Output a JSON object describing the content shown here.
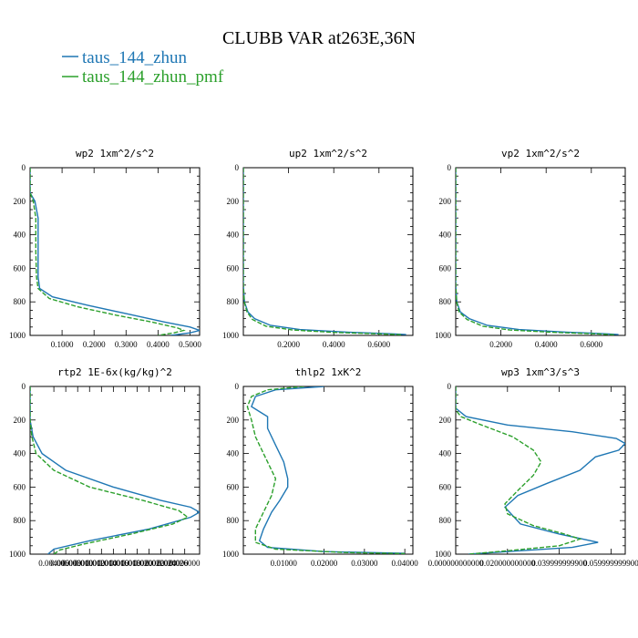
{
  "figure_title": "CLUBB VAR at263E,36N",
  "colors": {
    "zhun": "#1f77b4",
    "pmf": "#2ca02c"
  },
  "chart_data": [
    {
      "type": "line",
      "title": "wp2   1xm^2/s^2",
      "xlim": [
        0,
        0.53
      ],
      "ylim": [
        1000,
        0
      ],
      "x_tick_labels": [
        "0.1000",
        "0.2000",
        "0.3000",
        "0.4000",
        "0.5000"
      ],
      "x_tick_values": [
        0.1,
        0.2,
        0.3,
        0.4,
        0.5
      ],
      "y_tick_values": [
        0,
        200,
        400,
        600,
        800,
        1000
      ],
      "series": [
        {
          "name": "taus_144_zhun",
          "points": [
            [
              0,
              0
            ],
            [
              0,
              150
            ],
            [
              0.015,
              200
            ],
            [
              0.025,
              300
            ],
            [
              0.025,
              500
            ],
            [
              0.025,
              650
            ],
            [
              0.03,
              720
            ],
            [
              0.07,
              770
            ],
            [
              0.18,
              820
            ],
            [
              0.3,
              870
            ],
            [
              0.42,
              920
            ],
            [
              0.5,
              950
            ],
            [
              0.53,
              970
            ],
            [
              0.5,
              985
            ],
            [
              0.44,
              1000
            ]
          ]
        },
        {
          "name": "taus_144_zhun_pmf",
          "points": [
            [
              0,
              0
            ],
            [
              0,
              150
            ],
            [
              0.01,
              200
            ],
            [
              0.018,
              300
            ],
            [
              0.018,
              500
            ],
            [
              0.02,
              650
            ],
            [
              0.025,
              720
            ],
            [
              0.06,
              780
            ],
            [
              0.15,
              830
            ],
            [
              0.27,
              880
            ],
            [
              0.38,
              920
            ],
            [
              0.46,
              955
            ],
            [
              0.48,
              970
            ],
            [
              0.45,
              985
            ],
            [
              0.4,
              1000
            ]
          ]
        }
      ]
    },
    {
      "type": "line",
      "title": "up2   1xm^2/s^2",
      "xlim": [
        0,
        0.75
      ],
      "ylim": [
        1000,
        0
      ],
      "x_tick_labels": [
        "0.2000",
        "0.4000",
        "0.6000"
      ],
      "x_tick_values": [
        0.2,
        0.4,
        0.6
      ],
      "y_tick_values": [
        0,
        200,
        400,
        600,
        800,
        1000
      ],
      "series": [
        {
          "name": "taus_144_zhun",
          "points": [
            [
              0,
              0
            ],
            [
              0,
              700
            ],
            [
              0.005,
              800
            ],
            [
              0.02,
              860
            ],
            [
              0.05,
              900
            ],
            [
              0.12,
              940
            ],
            [
              0.25,
              965
            ],
            [
              0.45,
              980
            ],
            [
              0.65,
              990
            ],
            [
              0.72,
              995
            ]
          ]
        },
        {
          "name": "taus_144_zhun_pmf",
          "points": [
            [
              0,
              0
            ],
            [
              0,
              700
            ],
            [
              0.004,
              800
            ],
            [
              0.016,
              860
            ],
            [
              0.04,
              905
            ],
            [
              0.1,
              945
            ],
            [
              0.22,
              968
            ],
            [
              0.4,
              982
            ],
            [
              0.6,
              991
            ],
            [
              0.7,
              996
            ]
          ]
        }
      ]
    },
    {
      "type": "line",
      "title": "vp2   1xm^2/s^2",
      "xlim": [
        0,
        0.75
      ],
      "ylim": [
        1000,
        0
      ],
      "x_tick_labels": [
        "0.2000",
        "0.4000",
        "0.6000"
      ],
      "x_tick_values": [
        0.2,
        0.4,
        0.6
      ],
      "y_tick_values": [
        0,
        200,
        400,
        600,
        800,
        1000
      ],
      "series": [
        {
          "name": "taus_144_zhun",
          "points": [
            [
              0,
              0
            ],
            [
              0,
              700
            ],
            [
              0.005,
              800
            ],
            [
              0.02,
              860
            ],
            [
              0.06,
              900
            ],
            [
              0.14,
              940
            ],
            [
              0.28,
              965
            ],
            [
              0.48,
              980
            ],
            [
              0.66,
              990
            ],
            [
              0.72,
              995
            ]
          ]
        },
        {
          "name": "taus_144_zhun_pmf",
          "points": [
            [
              0,
              0
            ],
            [
              0,
              700
            ],
            [
              0.004,
              800
            ],
            [
              0.015,
              860
            ],
            [
              0.05,
              905
            ],
            [
              0.12,
              945
            ],
            [
              0.24,
              968
            ],
            [
              0.44,
              982
            ],
            [
              0.62,
              991
            ],
            [
              0.7,
              996
            ]
          ]
        }
      ]
    },
    {
      "type": "line",
      "title": "rtp2   1E-6x(kg/kg)^2",
      "xlim": [
        0,
        0.0285
      ],
      "ylim": [
        1000,
        0
      ],
      "x_tick_labels": [
        "0.004000",
        "0.006000",
        "0.008000",
        "0.010000",
        "0.012000",
        "0.014000",
        "0.016000",
        "0.018000",
        "0.020000",
        "0.022000",
        "0.024000",
        "0.026000"
      ],
      "x_tick_values": [
        0.004,
        0.006,
        0.008,
        0.01,
        0.012,
        0.014,
        0.016,
        0.018,
        0.02,
        0.022,
        0.024,
        0.026
      ],
      "y_tick_values": [
        0,
        200,
        400,
        600,
        800,
        1000
      ],
      "series": [
        {
          "name": "taus_144_zhun",
          "points": [
            [
              0,
              0
            ],
            [
              0,
              200
            ],
            [
              0.0005,
              300
            ],
            [
              0.002,
              400
            ],
            [
              0.006,
              500
            ],
            [
              0.014,
              600
            ],
            [
              0.022,
              680
            ],
            [
              0.027,
              720
            ],
            [
              0.0285,
              750
            ],
            [
              0.027,
              780
            ],
            [
              0.02,
              850
            ],
            [
              0.01,
              920
            ],
            [
              0.004,
              970
            ],
            [
              0.003,
              1000
            ]
          ]
        },
        {
          "name": "taus_144_zhun_pmf",
          "points": [
            [
              0,
              0
            ],
            [
              0,
              200
            ],
            [
              0.0003,
              300
            ],
            [
              0.001,
              400
            ],
            [
              0.004,
              500
            ],
            [
              0.01,
              600
            ],
            [
              0.019,
              680
            ],
            [
              0.025,
              740
            ],
            [
              0.0265,
              780
            ],
            [
              0.024,
              820
            ],
            [
              0.017,
              880
            ],
            [
              0.009,
              940
            ],
            [
              0.005,
              975
            ],
            [
              0.004,
              1000
            ]
          ]
        }
      ]
    },
    {
      "type": "line",
      "title": "thlp2   1xK^2",
      "xlim": [
        0,
        0.042
      ],
      "ylim": [
        1000,
        0
      ],
      "x_tick_labels": [
        "0.01000",
        "0.02000",
        "0.03000",
        "0.04000"
      ],
      "x_tick_values": [
        0.01,
        0.02,
        0.03,
        0.04
      ],
      "y_tick_values": [
        0,
        200,
        400,
        600,
        800,
        1000
      ],
      "series": [
        {
          "name": "taus_144_zhun",
          "points": [
            [
              0.02,
              0
            ],
            [
              0.008,
              20
            ],
            [
              0.003,
              60
            ],
            [
              0.002,
              120
            ],
            [
              0.004,
              150
            ],
            [
              0.006,
              180
            ],
            [
              0.006,
              250
            ],
            [
              0.008,
              350
            ],
            [
              0.01,
              450
            ],
            [
              0.011,
              550
            ],
            [
              0.011,
              600
            ],
            [
              0.009,
              680
            ],
            [
              0.007,
              750
            ],
            [
              0.005,
              850
            ],
            [
              0.004,
              920
            ],
            [
              0.006,
              960
            ],
            [
              0.02,
              985
            ],
            [
              0.04,
              995
            ]
          ]
        },
        {
          "name": "taus_144_zhun_pmf",
          "points": [
            [
              0.015,
              0
            ],
            [
              0.006,
              20
            ],
            [
              0.002,
              60
            ],
            [
              0.001,
              120
            ],
            [
              0.002,
              200
            ],
            [
              0.003,
              300
            ],
            [
              0.005,
              400
            ],
            [
              0.007,
              500
            ],
            [
              0.008,
              550
            ],
            [
              0.007,
              650
            ],
            [
              0.005,
              750
            ],
            [
              0.003,
              850
            ],
            [
              0.003,
              930
            ],
            [
              0.008,
              970
            ],
            [
              0.025,
              990
            ],
            [
              0.04,
              997
            ]
          ]
        }
      ]
    },
    {
      "type": "line",
      "title": "wp3   1xm^3/s^3",
      "xlim": [
        0,
        0.0655
      ],
      "ylim": [
        1000,
        0
      ],
      "x_tick_labels": [
        "0.000000000000",
        "0.020000000000",
        "0.039999999900",
        "0.059999999900"
      ],
      "x_tick_values": [
        0,
        0.02,
        0.04,
        0.06
      ],
      "y_tick_values": [
        0,
        200,
        400,
        600,
        800,
        1000
      ],
      "series": [
        {
          "name": "taus_144_zhun",
          "points": [
            [
              0,
              0
            ],
            [
              0,
              130
            ],
            [
              0.004,
              180
            ],
            [
              0.02,
              230
            ],
            [
              0.045,
              270
            ],
            [
              0.062,
              310
            ],
            [
              0.0655,
              340
            ],
            [
              0.063,
              380
            ],
            [
              0.054,
              420
            ],
            [
              0.048,
              500
            ],
            [
              0.035,
              580
            ],
            [
              0.024,
              650
            ],
            [
              0.019,
              720
            ],
            [
              0.025,
              820
            ],
            [
              0.04,
              880
            ],
            [
              0.055,
              930
            ],
            [
              0.045,
              960
            ],
            [
              0.02,
              985
            ],
            [
              0.005,
              1000
            ]
          ]
        },
        {
          "name": "taus_144_zhun_pmf",
          "points": [
            [
              0,
              0
            ],
            [
              0,
              140
            ],
            [
              0.002,
              180
            ],
            [
              0.01,
              230
            ],
            [
              0.022,
              300
            ],
            [
              0.03,
              380
            ],
            [
              0.033,
              450
            ],
            [
              0.03,
              530
            ],
            [
              0.024,
              620
            ],
            [
              0.019,
              700
            ],
            [
              0.02,
              760
            ],
            [
              0.03,
              830
            ],
            [
              0.042,
              880
            ],
            [
              0.048,
              910
            ],
            [
              0.04,
              950
            ],
            [
              0.02,
              980
            ],
            [
              0.005,
              1000
            ]
          ]
        }
      ]
    }
  ]
}
